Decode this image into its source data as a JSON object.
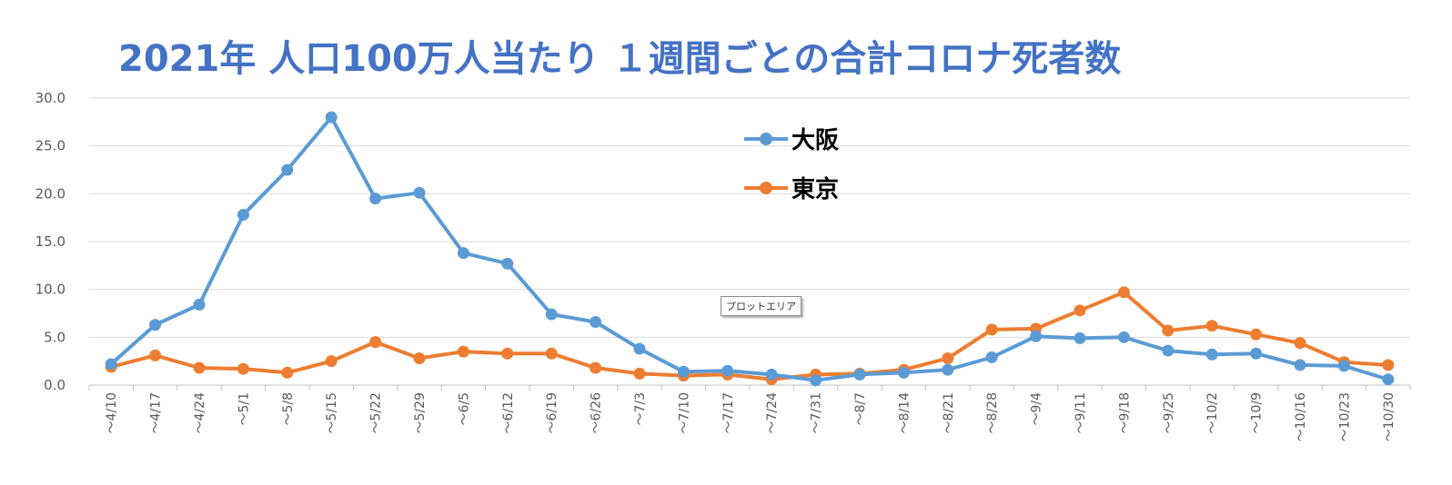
{
  "chart_data": {
    "type": "line",
    "title": "2021年 人口100万人当たり １週間ごとの合計コロナ死者数",
    "xlabel": "",
    "ylabel": "",
    "ylim": [
      0,
      30
    ],
    "y_ticks": [
      "0.0",
      "5.0",
      "10.0",
      "15.0",
      "20.0",
      "25.0",
      "30.0"
    ],
    "grid": true,
    "legend_position": "top-center",
    "categories": [
      "～4/10",
      "～4/17",
      "～4/24",
      "～5/1",
      "～5/8",
      "～5/15",
      "～5/22",
      "～5/29",
      "～6/5",
      "～6/12",
      "～6/19",
      "～6/26",
      "～7/3",
      "～7/10",
      "～7/17",
      "～7/24",
      "～7/31",
      "～8/7",
      "～8/14",
      "～8/21",
      "～8/28",
      "～9/4",
      "～9/11",
      "～9/18",
      "～9/25",
      "～10/2",
      "～10/9",
      "～10/16",
      "～10/23",
      "～10/30"
    ],
    "series": [
      {
        "name": "大阪",
        "color": "#5b9bd5",
        "values": [
          2.2,
          6.3,
          8.4,
          17.8,
          22.5,
          28.0,
          19.5,
          20.1,
          13.8,
          12.7,
          7.4,
          6.6,
          3.8,
          1.4,
          1.5,
          1.1,
          0.5,
          1.1,
          1.3,
          1.6,
          2.9,
          5.1,
          4.9,
          5.0,
          3.6,
          3.2,
          3.3,
          2.1,
          2.0,
          0.6
        ]
      },
      {
        "name": "東京",
        "color": "#ed7d31",
        "values": [
          1.9,
          3.1,
          1.8,
          1.7,
          1.3,
          2.5,
          4.5,
          2.8,
          3.5,
          3.3,
          3.3,
          1.8,
          1.2,
          1.0,
          1.1,
          0.6,
          1.1,
          1.2,
          1.6,
          2.8,
          5.8,
          5.9,
          7.8,
          9.7,
          5.7,
          6.2,
          5.3,
          4.4,
          2.4,
          2.1
        ]
      }
    ]
  },
  "ui": {
    "tooltip": "プロットエリア"
  }
}
